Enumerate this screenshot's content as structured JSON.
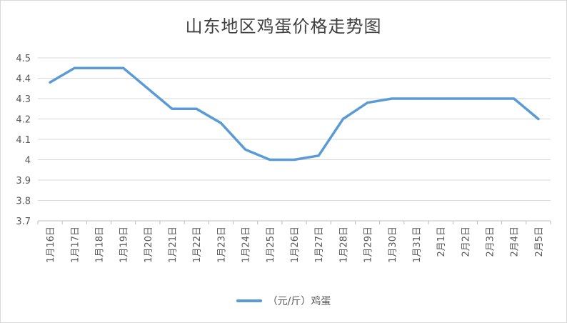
{
  "chart_data": {
    "type": "line",
    "title": "山东地区鸡蛋价格走势图",
    "categories": [
      "1月16日",
      "1月17日",
      "1月18日",
      "1月19日",
      "1月20日",
      "1月21日",
      "1月22日",
      "1月23日",
      "1月24日",
      "1月25日",
      "1月26日",
      "1月27日",
      "1月28日",
      "1月29日",
      "1月30日",
      "1月31日",
      "2月1日",
      "2月2日",
      "2月3日",
      "2月4日",
      "2月5日"
    ],
    "series": [
      {
        "name": "（元/斤）鸡蛋",
        "values": [
          4.38,
          4.45,
          4.45,
          4.45,
          4.35,
          4.25,
          4.25,
          4.18,
          4.05,
          4.0,
          4.0,
          4.02,
          4.2,
          4.28,
          4.3,
          4.3,
          4.3,
          4.3,
          4.3,
          4.3,
          4.2
        ]
      }
    ],
    "ylim": [
      3.7,
      4.5
    ],
    "yticks": [
      "4.5",
      "4.4",
      "4.3",
      "4.2",
      "4.1",
      "4",
      "3.9",
      "3.8",
      "3.7"
    ],
    "ytick_values": [
      4.5,
      4.4,
      4.3,
      4.2,
      4.1,
      4.0,
      3.9,
      3.8,
      3.7
    ],
    "grid": true,
    "legend_position": "bottom",
    "line_color": "#5b9bd5"
  }
}
